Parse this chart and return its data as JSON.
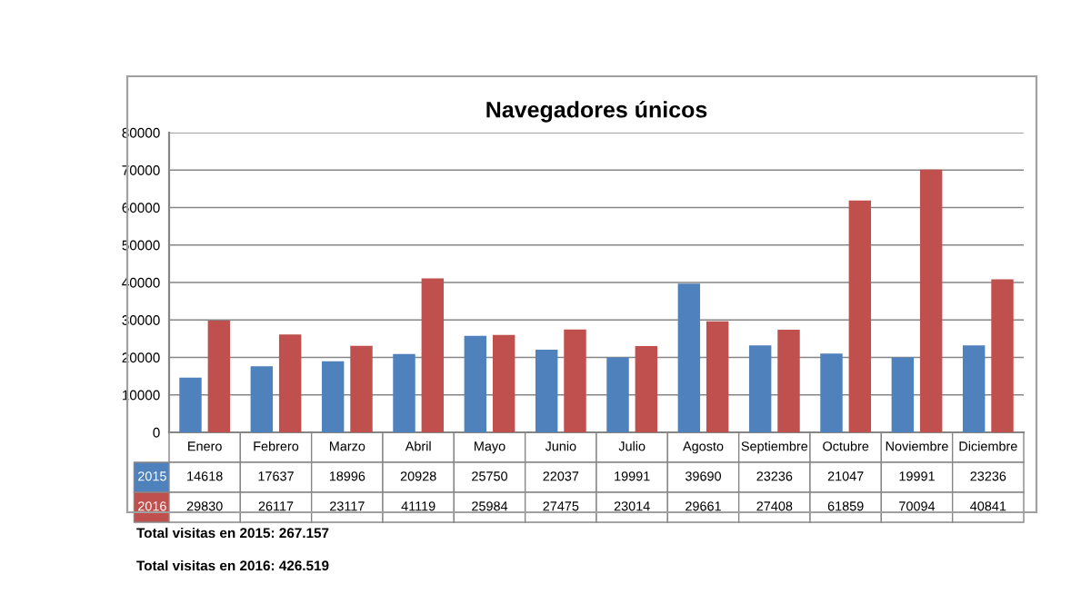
{
  "chart_data": {
    "type": "bar",
    "title": "Navegadores únicos",
    "categories": [
      "Enero",
      "Febrero",
      "Marzo",
      "Abril",
      "Mayo",
      "Junio",
      "Julio",
      "Agosto",
      "Septiembre",
      "Octubre",
      "Noviembre",
      "Diciembre"
    ],
    "series": [
      {
        "name": "2015",
        "color": "#4f81bd",
        "values": [
          14618,
          17637,
          18996,
          20928,
          25750,
          22037,
          19991,
          39690,
          23236,
          21047,
          19991,
          23236
        ]
      },
      {
        "name": "2016",
        "color": "#c0504d",
        "values": [
          29830,
          26117,
          23117,
          41119,
          25984,
          27475,
          23014,
          29661,
          27408,
          61859,
          70094,
          40841
        ]
      }
    ],
    "ylim": [
      0,
      80000
    ],
    "yticks": [
      0,
      10000,
      20000,
      30000,
      40000,
      50000,
      60000,
      70000,
      80000
    ],
    "grid": "y",
    "legend": "bottom",
    "data_labels": true,
    "annotations": [
      "Total visitas en 2015: 267.157",
      "Total visitas en 2016: 426.519"
    ]
  }
}
